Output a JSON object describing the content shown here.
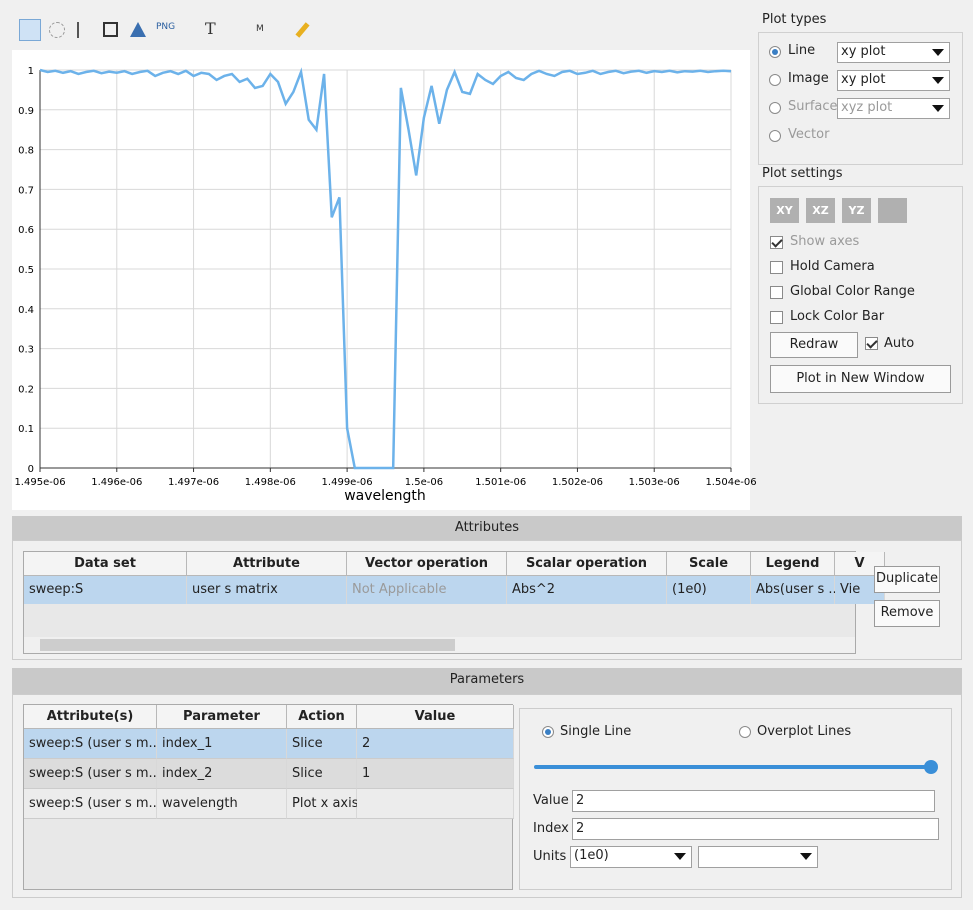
{
  "toolbar": {
    "png": "PNG",
    "text": "T",
    "marker": "M"
  },
  "chart_data": {
    "type": "line",
    "x_label": "wavelength",
    "x": [
      1.495e-06,
      1.4951e-06,
      1.4952e-06,
      1.4953e-06,
      1.4954e-06,
      1.4955e-06,
      1.4956e-06,
      1.4957e-06,
      1.4958e-06,
      1.4959e-06,
      1.496e-06,
      1.4961e-06,
      1.4962e-06,
      1.4963e-06,
      1.4964e-06,
      1.4965e-06,
      1.4966e-06,
      1.4967e-06,
      1.4968e-06,
      1.4969e-06,
      1.497e-06,
      1.4971e-06,
      1.4972e-06,
      1.4973e-06,
      1.4974e-06,
      1.4975e-06,
      1.4976e-06,
      1.4977e-06,
      1.4978e-06,
      1.4979e-06,
      1.498e-06,
      1.4981e-06,
      1.4982e-06,
      1.4983e-06,
      1.4984e-06,
      1.4985e-06,
      1.4986e-06,
      1.4987e-06,
      1.4988e-06,
      1.4989e-06,
      1.499e-06,
      1.4991e-06,
      1.4992e-06,
      1.4993e-06,
      1.4994e-06,
      1.4995e-06,
      1.4996e-06,
      1.4997e-06,
      1.4998e-06,
      1.4999e-06,
      1.5e-06,
      1.5001e-06,
      1.5002e-06,
      1.5003e-06,
      1.5004e-06,
      1.5005e-06,
      1.5006e-06,
      1.5007e-06,
      1.5008e-06,
      1.5009e-06,
      1.501e-06,
      1.5011e-06,
      1.5012e-06,
      1.5013e-06,
      1.5014e-06,
      1.5015e-06,
      1.5016e-06,
      1.5017e-06,
      1.5018e-06,
      1.5019e-06,
      1.502e-06,
      1.5021e-06,
      1.5022e-06,
      1.5023e-06,
      1.5024e-06,
      1.5025e-06,
      1.5026e-06,
      1.5027e-06,
      1.5028e-06,
      1.5029e-06,
      1.503e-06,
      1.5031e-06,
      1.5032e-06,
      1.5033e-06,
      1.5034e-06,
      1.5035e-06,
      1.5036e-06,
      1.5037e-06,
      1.5038e-06,
      1.5039e-06,
      1.504e-06
    ],
    "series": [
      {
        "color": "#6cb2ea",
        "values": [
          1,
          0.995,
          0.998,
          0.993,
          0.997,
          0.99,
          0.995,
          0.998,
          0.992,
          0.996,
          0.993,
          0.997,
          0.99,
          0.995,
          0.998,
          0.985,
          0.993,
          0.997,
          0.99,
          0.998,
          0.985,
          0.993,
          0.99,
          0.975,
          0.985,
          0.99,
          0.97,
          0.978,
          0.955,
          0.96,
          0.99,
          0.97,
          0.915,
          0.945,
          0.995,
          0.875,
          0.85,
          0.99,
          0.63,
          0.68,
          0.1,
          0,
          0,
          0,
          0,
          0,
          0,
          0.955,
          0.85,
          0.735,
          0.88,
          0.96,
          0.865,
          0.95,
          0.995,
          0.945,
          0.94,
          0.99,
          0.975,
          0.965,
          0.985,
          0.995,
          0.98,
          0.975,
          0.99,
          0.998,
          0.99,
          0.985,
          0.995,
          0.998,
          0.99,
          0.993,
          0.998,
          0.99,
          0.995,
          0.998,
          0.992,
          0.996,
          0.998,
          0.993,
          0.997,
          0.995,
          0.998,
          0.994,
          0.997,
          0.996,
          0.998,
          0.995,
          0.997,
          0.998,
          0.997
        ]
      }
    ],
    "xlim": [
      1.495e-06,
      1.504e-06
    ],
    "xticks": [
      {
        "value": 1.495e-06,
        "label": "1.495e-06"
      },
      {
        "value": 1.496e-06,
        "label": "1.496e-06"
      },
      {
        "value": 1.497e-06,
        "label": "1.497e-06"
      },
      {
        "value": 1.498e-06,
        "label": "1.498e-06"
      },
      {
        "value": 1.499e-06,
        "label": "1.499e-06"
      },
      {
        "value": 1.5e-06,
        "label": "1.5e-06"
      },
      {
        "value": 1.501e-06,
        "label": "1.501e-06"
      },
      {
        "value": 1.502e-06,
        "label": "1.502e-06"
      },
      {
        "value": 1.503e-06,
        "label": "1.503e-06"
      },
      {
        "value": 1.504e-06,
        "label": "1.504e-06"
      }
    ],
    "ylim": [
      0,
      1
    ],
    "yticks": [
      0,
      0.1,
      0.2,
      0.3,
      0.4,
      0.5,
      0.6,
      0.7,
      0.8,
      0.9,
      1
    ],
    "grid": true
  },
  "plot_types": {
    "title": "Plot types",
    "rows": [
      {
        "label": "Line",
        "combo": "xy plot"
      },
      {
        "label": "Image",
        "combo": "xy plot"
      },
      {
        "label": "Surface",
        "combo": "xyz plot"
      },
      {
        "label": "Vector"
      }
    ]
  },
  "plot_settings": {
    "title": "Plot settings",
    "buttons": [
      "XY",
      "XZ",
      "YZ"
    ],
    "checks": [
      "Show axes",
      "Hold Camera",
      "Global Color Range",
      "Lock Color Bar"
    ],
    "redraw": "Redraw",
    "auto": "Auto",
    "new_window": "Plot in New Window"
  },
  "attributes": {
    "title": "Attributes",
    "columns": [
      "Data set",
      "Attribute",
      "Vector operation",
      "Scalar operation",
      "Scale",
      "Legend",
      "V"
    ],
    "rows": [
      [
        "sweep:S",
        "user s matrix",
        "Not Applicable",
        "Abs^2",
        "(1e0)",
        "Abs(user s ...",
        "Vie"
      ]
    ],
    "duplicate": "Duplicate",
    "remove": "Remove"
  },
  "parameters": {
    "title": "Parameters",
    "columns": [
      "Attribute(s)",
      "Parameter",
      "Action",
      "Value"
    ],
    "rows": [
      [
        "sweep:S (user s m...",
        "index_1",
        "Slice",
        "2"
      ],
      [
        "sweep:S (user s m...",
        "index_2",
        "Slice",
        "1"
      ],
      [
        "sweep:S (user s m...",
        "wavelength",
        "Plot x axis",
        ""
      ]
    ],
    "single_line": "Single Line",
    "overplot": "Overplot Lines",
    "value_label": "Value",
    "value": "2",
    "index_label": "Index",
    "index": "2",
    "units_label": "Units",
    "units": "(1e0)"
  }
}
